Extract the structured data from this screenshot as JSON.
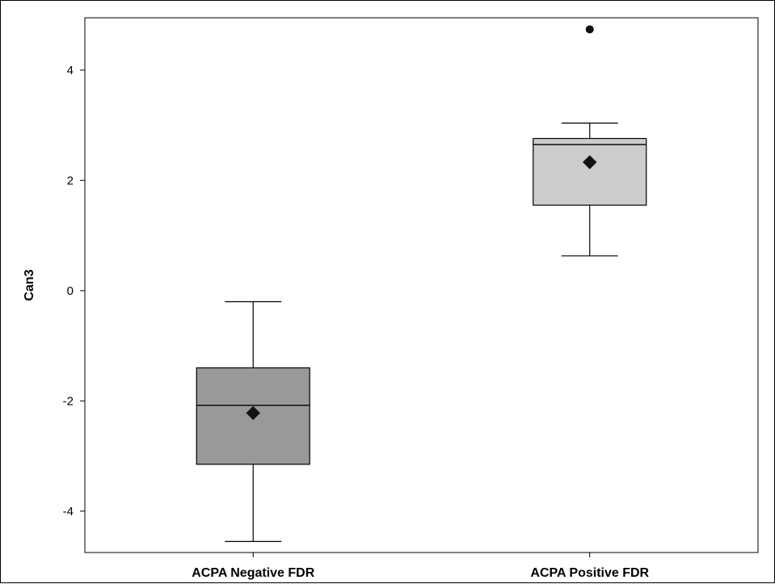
{
  "chart_data": {
    "type": "box",
    "title": "",
    "xlabel": "",
    "ylabel": "Can3",
    "ylim": [
      -4.75,
      4.95
    ],
    "yticks": [
      -4,
      -2,
      0,
      2,
      4
    ],
    "categories": [
      "ACPA Negative FDR",
      "ACPA Positive FDR"
    ],
    "boxes": [
      {
        "category": "ACPA Negative FDR",
        "whisker_low": -4.55,
        "q1": -3.15,
        "median": -2.08,
        "q3": -1.4,
        "whisker_high": -0.2,
        "mean": -2.22,
        "outliers": [],
        "color": "#999999"
      },
      {
        "category": "ACPA Positive FDR",
        "whisker_low": 0.63,
        "q1": 1.55,
        "median": 2.65,
        "q3": 2.76,
        "whisker_high": 3.04,
        "mean": 2.33,
        "outliers": [
          4.74
        ],
        "color": "#cccccc"
      }
    ],
    "grid": false,
    "legend": "none"
  }
}
